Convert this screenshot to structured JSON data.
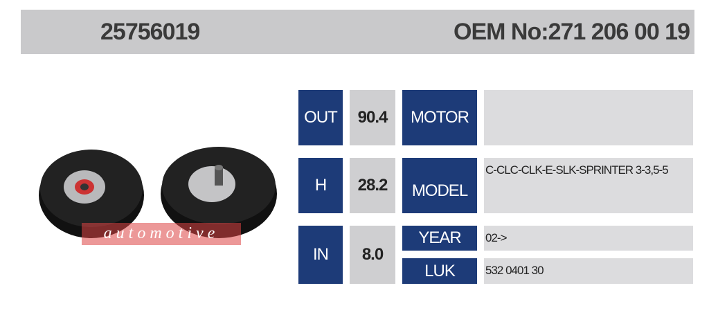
{
  "header": {
    "part_number": "25756019",
    "oem": "OEM No:271 206 00 19"
  },
  "logo_text": "automotive",
  "specs": [
    {
      "label": "OUT",
      "value": "90.4"
    },
    {
      "label": "H",
      "value": "28.2"
    },
    {
      "label": "IN",
      "value": "8.0"
    }
  ],
  "details": [
    {
      "label": "MOTOR"
    },
    {
      "label": "MODEL",
      "value": "C-CLC-CLK-E-SLK-SPRINTER 3-3,5-5"
    },
    {
      "label": "YEAR",
      "value": "02->"
    },
    {
      "label": "LUK",
      "value": "532 0401 30"
    }
  ]
}
